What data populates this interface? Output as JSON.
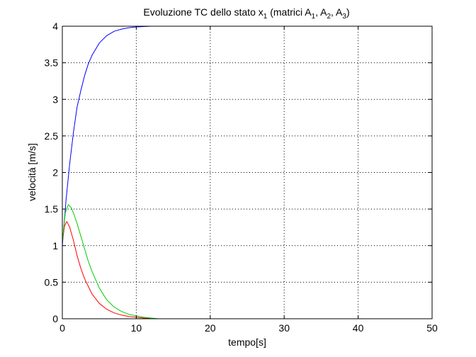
{
  "chart_data": {
    "type": "line",
    "title": {
      "main": "Evoluzione TC dello stato x",
      "main_sub": "1",
      "mid": " (matrici A",
      "sub1": "1",
      "sep1": ", A",
      "sub2": "2",
      "sep2": ", A",
      "sub3": "3",
      "end": ")"
    },
    "xlabel": "tempo[s]",
    "ylabel": "velocità [m/s]",
    "xlim": [
      0,
      50
    ],
    "ylim": [
      0,
      4
    ],
    "xticks": [
      0,
      10,
      20,
      30,
      40,
      50
    ],
    "yticks": [
      0,
      0.5,
      1,
      1.5,
      2,
      2.5,
      3,
      3.5,
      4
    ],
    "xtick_labels": [
      "0",
      "10",
      "20",
      "30",
      "40",
      "50"
    ],
    "ytick_labels": [
      "0",
      "0.5",
      "1",
      "1.5",
      "2",
      "2.5",
      "3",
      "3.5",
      "4"
    ],
    "grid": true,
    "series": [
      {
        "color": "#0000ff",
        "x": [
          0,
          0.5,
          1,
          1.5,
          2,
          2.5,
          3,
          3.5,
          4,
          5,
          6,
          7,
          8,
          9,
          10,
          11,
          12
        ],
        "y": [
          1.0,
          1.62,
          2.12,
          2.55,
          2.9,
          3.12,
          3.32,
          3.48,
          3.6,
          3.77,
          3.87,
          3.93,
          3.96,
          3.98,
          3.99,
          3.995,
          4.0
        ]
      },
      {
        "color": "#ff0000",
        "x": [
          0,
          0.3,
          0.6,
          1.0,
          1.5,
          2,
          2.5,
          3,
          4,
          5,
          6,
          7,
          8,
          9,
          10,
          11,
          12,
          13,
          20,
          30,
          40,
          50
        ],
        "y": [
          1.05,
          1.27,
          1.33,
          1.25,
          1.07,
          0.86,
          0.69,
          0.55,
          0.34,
          0.21,
          0.13,
          0.08,
          0.05,
          0.03,
          0.02,
          0.01,
          0.005,
          0.0,
          0.0,
          0.0,
          0.0,
          0.0
        ]
      },
      {
        "color": "#00cc00",
        "x": [
          0,
          0.4,
          0.8,
          1.2,
          1.6,
          2,
          2.5,
          3,
          3.5,
          4,
          5,
          6,
          7,
          8,
          9,
          10,
          11,
          12,
          13,
          20,
          30,
          40,
          50
        ],
        "y": [
          1.05,
          1.45,
          1.56,
          1.52,
          1.42,
          1.3,
          1.13,
          0.96,
          0.79,
          0.65,
          0.42,
          0.26,
          0.16,
          0.1,
          0.06,
          0.04,
          0.02,
          0.01,
          0.0,
          0.0,
          0.0,
          0.0,
          0.0
        ]
      }
    ]
  }
}
